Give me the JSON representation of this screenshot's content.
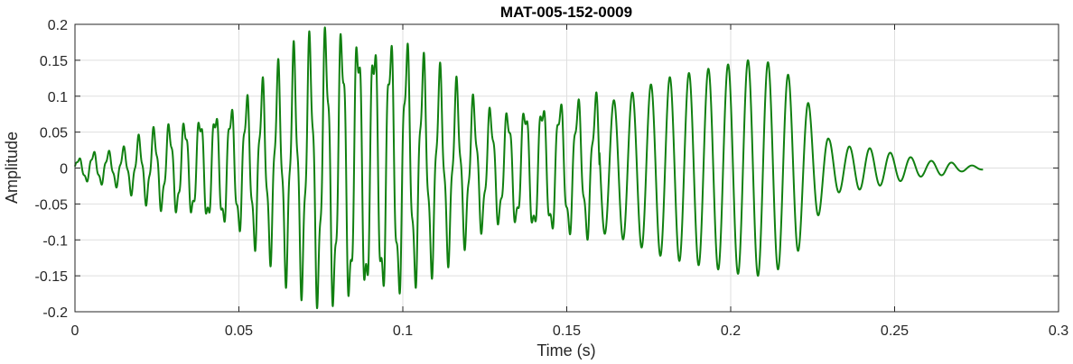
{
  "chart_data": {
    "type": "line",
    "title": "MAT-005-152-0009",
    "xlabel": "Time (s)",
    "ylabel": "Amplitude",
    "xlim": [
      0,
      0.3
    ],
    "ylim": [
      -0.2,
      0.2
    ],
    "xticks": [
      0,
      0.05,
      0.1,
      0.15,
      0.2,
      0.25,
      0.3
    ],
    "yticks": [
      0.2,
      0.15,
      0.1,
      0.05,
      0,
      -0.05,
      -0.1,
      -0.15,
      -0.2
    ],
    "xtick_labels": [
      "0",
      "0.05",
      "0.1",
      "0.15",
      "0.2",
      "0.25",
      "0.3"
    ],
    "ytick_labels": [
      "0.2",
      "0.15",
      "0.1",
      "0.05",
      "0",
      "-0.05",
      "-0.1",
      "-0.15",
      "-0.2"
    ],
    "grid": true,
    "series": [
      {
        "color": "#118011",
        "x": [
          0,
          0.005,
          0.01,
          0.015,
          0.02,
          0.025,
          0.03,
          0.035,
          0.04,
          0.045,
          0.05,
          0.055,
          0.06,
          0.065,
          0.07,
          0.075,
          0.08,
          0.085,
          0.09,
          0.095,
          0.1,
          0.105,
          0.11,
          0.115,
          0.12,
          0.125,
          0.13,
          0.135,
          0.14,
          0.145,
          0.15,
          0.155,
          0.16,
          0.165,
          0.17,
          0.175,
          0.18,
          0.185,
          0.19,
          0.195,
          0.2,
          0.205,
          0.21,
          0.215,
          0.22,
          0.225,
          0.23,
          0.235,
          0.24,
          0.245,
          0.25,
          0.255,
          0.26,
          0.265,
          0.27,
          0.275,
          0.277
        ],
        "envelope": [
          0.01,
          0.02,
          0.02,
          0.025,
          0.04,
          0.05,
          0.055,
          0.06,
          0.07,
          0.075,
          0.08,
          0.1,
          0.115,
          0.14,
          0.155,
          0.17,
          0.175,
          0.175,
          0.17,
          0.165,
          0.16,
          0.14,
          0.125,
          0.11,
          0.09,
          0.075,
          0.07,
          0.075,
          0.085,
          0.085,
          0.085,
          0.085,
          0.09,
          0.095,
          0.105,
          0.115,
          0.125,
          0.13,
          0.135,
          0.14,
          0.145,
          0.15,
          0.15,
          0.14,
          0.12,
          0.08,
          0.04,
          0.03,
          0.03,
          0.025,
          0.02,
          0.015,
          0.01,
          0.01,
          0.005,
          0.003,
          0.002
        ],
        "frequency_hz_by_time": [
          [
            0,
            220
          ],
          [
            0.05,
            210
          ],
          [
            0.1,
            200
          ],
          [
            0.15,
            185
          ],
          [
            0.2,
            165
          ],
          [
            0.23,
            160
          ],
          [
            0.277,
            160
          ]
        ]
      }
    ]
  }
}
